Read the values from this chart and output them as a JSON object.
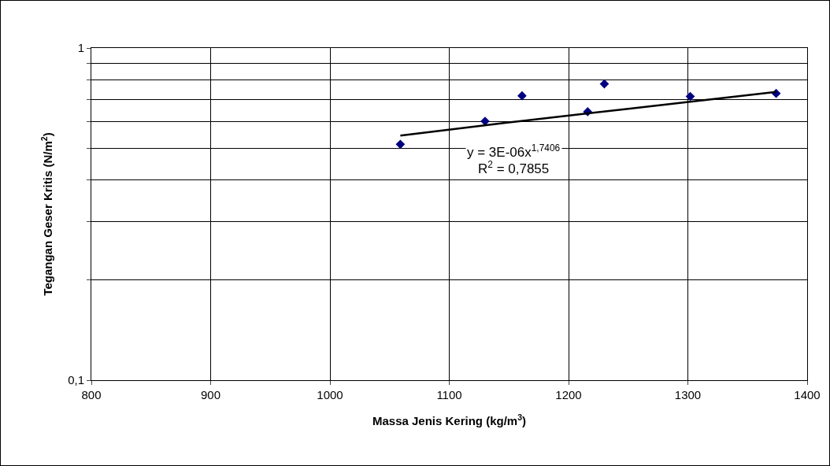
{
  "chart_data": {
    "type": "scatter",
    "xlabel": "Massa Jenis Kering (kg/m$^{3}$)",
    "ylabel": "Tegangan Geser Kritis (N/m$^{2}$)",
    "series": [
      {
        "color": "#000080",
        "marker": "diamond",
        "x": [
          1059,
          1130,
          1161,
          1216,
          1230,
          1302,
          1374
        ],
        "values": [
          0.513,
          0.602,
          0.718,
          0.643,
          0.78,
          0.715,
          0.73
        ]
      },
      {
        "type": "line",
        "color": "#000000",
        "marker": "none",
        "x": [
          1059,
          1150,
          1250,
          1374
        ],
        "values": [
          0.545,
          0.597,
          0.656,
          0.738
        ]
      }
    ],
    "annotations": [
      "y = 3E-06x$^{1,7406}$",
      "R$^{2}$ = 0,7855"
    ],
    "xlim": [
      800,
      1400
    ],
    "xticks": [
      800,
      900,
      1000,
      1100,
      1200,
      1300,
      1400
    ],
    "ylim": [
      0.1,
      1
    ],
    "yticks": [
      {
        "value": 0.1,
        "label": "0,1"
      },
      {
        "value": 0.2,
        "label": null
      },
      {
        "value": 0.3,
        "label": null
      },
      {
        "value": 0.4,
        "label": null
      },
      {
        "value": 0.5,
        "label": null
      },
      {
        "value": 0.6,
        "label": null
      },
      {
        "value": 0.7,
        "label": null
      },
      {
        "value": 0.8,
        "label": null
      },
      {
        "value": 0.9,
        "label": null
      },
      {
        "value": 1,
        "label": "1"
      }
    ],
    "log": "y",
    "grid": true
  }
}
